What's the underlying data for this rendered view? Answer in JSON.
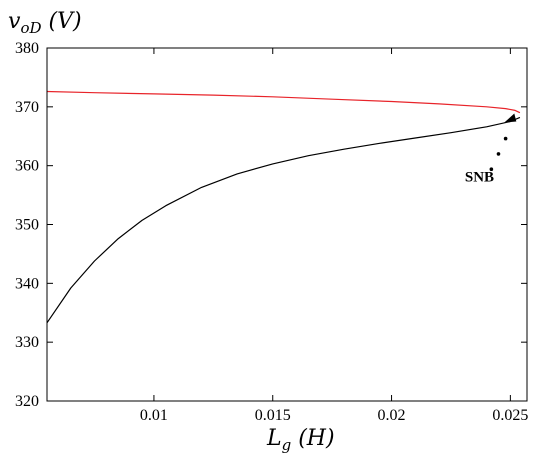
{
  "chart_data": {
    "type": "line",
    "title": "",
    "xlabel": "L_g (H)",
    "ylabel": "v_oD (V)",
    "xlim": [
      0.0055,
      0.0257
    ],
    "ylim": [
      320,
      380
    ],
    "xticks": [
      0.01,
      0.015,
      0.02,
      0.025
    ],
    "xtick_labels": [
      "0.01",
      "0.015",
      "0.02",
      "0.025"
    ],
    "yticks": [
      320,
      330,
      340,
      350,
      360,
      370,
      380
    ],
    "ytick_labels": [
      "320",
      "330",
      "340",
      "350",
      "360",
      "370",
      "380"
    ],
    "grid": false,
    "colors": {
      "upper": "#e8242a",
      "lower": "#000000"
    },
    "series": [
      {
        "color": "#e8242a",
        "x": [
          0.0055,
          0.0075,
          0.01,
          0.0125,
          0.015,
          0.0175,
          0.02,
          0.022,
          0.024,
          0.0248,
          0.0252,
          0.0254
        ],
        "y": [
          372.6,
          372.4,
          372.2,
          372.0,
          371.7,
          371.3,
          370.9,
          370.5,
          370.0,
          369.7,
          369.4,
          369.0
        ]
      },
      {
        "color": "#000000",
        "x": [
          0.0055,
          0.0065,
          0.0075,
          0.0085,
          0.0095,
          0.0105,
          0.012,
          0.0135,
          0.015,
          0.0165,
          0.018,
          0.0195,
          0.021,
          0.0225,
          0.024,
          0.025,
          0.0254
        ],
        "y": [
          333.3,
          339.2,
          343.8,
          347.6,
          350.7,
          353.2,
          356.3,
          358.6,
          360.3,
          361.7,
          362.8,
          363.8,
          364.7,
          365.6,
          366.6,
          367.5,
          368.2
        ]
      }
    ],
    "annotation": {
      "text": "SNB",
      "dots": [
        [
          0.0242,
          359.4
        ],
        [
          0.0245,
          362.0
        ],
        [
          0.0248,
          364.6
        ]
      ],
      "arrow_tip": [
        0.02525,
        367.5
      ]
    }
  }
}
